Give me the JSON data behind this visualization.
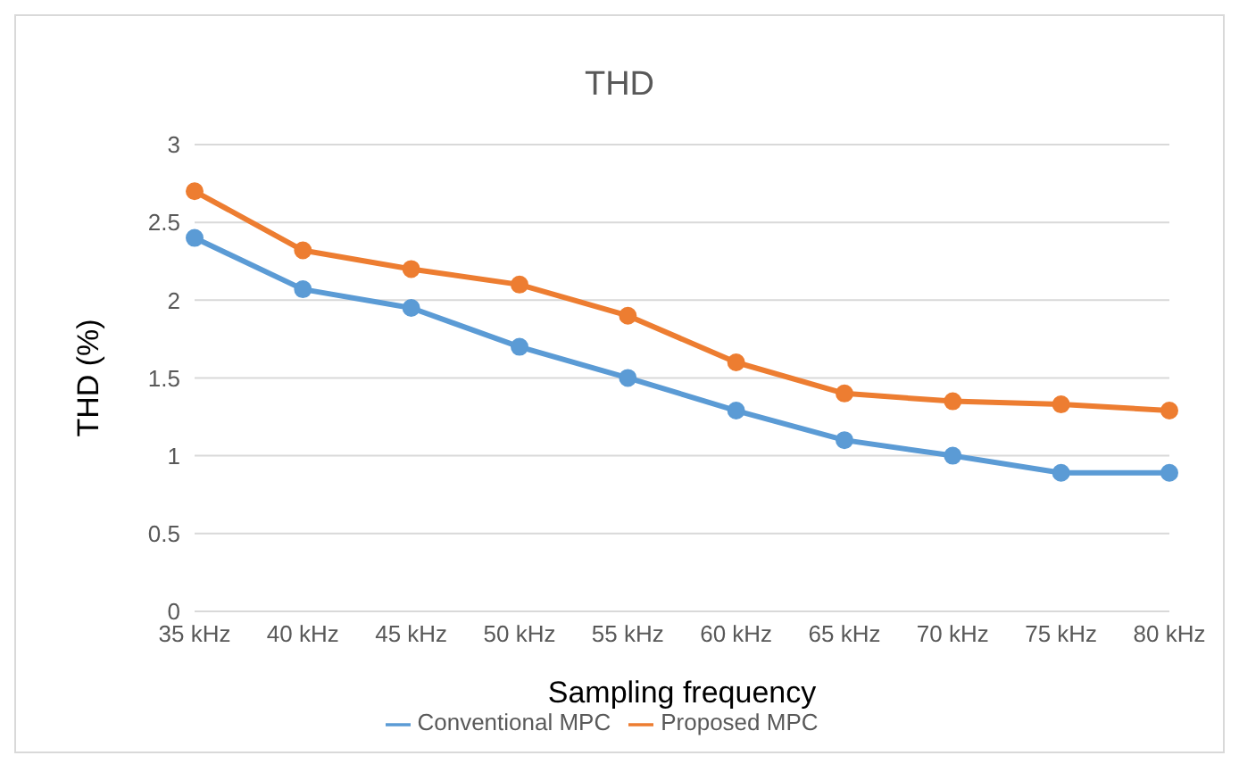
{
  "chart_data": {
    "type": "line",
    "title": "THD",
    "xlabel": "Sampling frequency",
    "ylabel": "THD (%)",
    "categories": [
      "35 kHz",
      "40 kHz",
      "45 kHz",
      "50 kHz",
      "55 kHz",
      "60 kHz",
      "65 kHz",
      "70 kHz",
      "75 kHz",
      "80 kHz"
    ],
    "series": [
      {
        "name": "Conventional MPC",
        "color": "#5b9bd5",
        "values": [
          2.4,
          2.07,
          1.95,
          1.7,
          1.5,
          1.29,
          1.1,
          1.0,
          0.89,
          0.89
        ]
      },
      {
        "name": "Proposed MPC",
        "color": "#ed7d31",
        "values": [
          2.7,
          2.32,
          2.2,
          2.1,
          1.9,
          1.6,
          1.4,
          1.35,
          1.33,
          1.29
        ]
      }
    ],
    "ylim": [
      0,
      3
    ],
    "yticks": [
      0,
      0.5,
      1,
      1.5,
      2,
      2.5,
      3
    ],
    "grid": "y",
    "legend": "bottom",
    "marker": "circle",
    "line_style": "solid"
  }
}
